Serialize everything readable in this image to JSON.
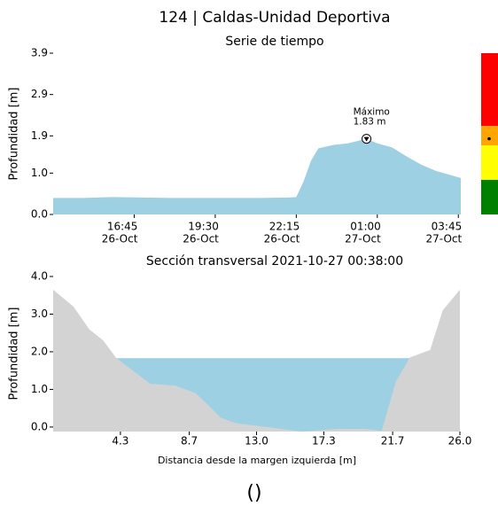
{
  "chart_data": [
    {
      "type": "area",
      "title": "124 | Caldas-Unidad Deportiva",
      "subtitle": "Serie de tiempo",
      "ylabel": "Profundidad [m]",
      "color": "#9dd0e2",
      "x": [
        "26-Oct 14:00",
        "26-Oct 15:00",
        "26-Oct 16:00",
        "26-Oct 17:00",
        "26-Oct 18:00",
        "26-Oct 19:00",
        "26-Oct 20:00",
        "26-Oct 21:00",
        "26-Oct 22:00",
        "26-Oct 22:15",
        "26-Oct 22:30",
        "26-Oct 22:45",
        "26-Oct 23:00",
        "26-Oct 23:30",
        "27-Oct 00:00",
        "27-Oct 00:38",
        "27-Oct 01:00",
        "27-Oct 01:30",
        "27-Oct 02:00",
        "27-Oct 02:30",
        "27-Oct 03:00",
        "27-Oct 03:30",
        "27-Oct 03:50"
      ],
      "values": [
        0.4,
        0.4,
        0.42,
        0.41,
        0.4,
        0.4,
        0.4,
        0.4,
        0.41,
        0.42,
        0.8,
        1.3,
        1.6,
        1.68,
        1.72,
        1.83,
        1.72,
        1.62,
        1.4,
        1.2,
        1.05,
        0.95,
        0.88
      ],
      "xlim": [
        "26-Oct 14:00",
        "27-Oct 03:50"
      ],
      "xticks": [
        {
          "value": "26-Oct 16:45",
          "label": [
            "16:45",
            "26-Oct"
          ]
        },
        {
          "value": "26-Oct 19:30",
          "label": [
            "19:30",
            "26-Oct"
          ]
        },
        {
          "value": "26-Oct 22:15",
          "label": [
            "22:15",
            "26-Oct"
          ]
        },
        {
          "value": "27-Oct 01:00",
          "label": [
            "01:00",
            "27-Oct"
          ]
        },
        {
          "value": "27-Oct 03:45",
          "label": [
            "03:45",
            "27-Oct"
          ]
        }
      ],
      "ylim": [
        0,
        3.9
      ],
      "yticks": [
        {
          "value": 0,
          "label": "0.0"
        },
        {
          "value": 1,
          "label": "1.0"
        },
        1.9,
        2.9,
        3.9
      ],
      "annotation": [
        "Máximo",
        "1.83 m"
      ],
      "levels": {
        "bounds": [
          0,
          0.84,
          1.67,
          2.14,
          3.9
        ],
        "colors": [
          "#008000",
          "#ffff00",
          "#ffa500",
          "#ff0000"
        ]
      }
    },
    {
      "type": "area",
      "title": "Sección transversal 2021-10-27 00:38:00",
      "ylabel": "Profundidad [m]",
      "xlabel": "Distancia desde la margen izquierda [m]",
      "color": "#d3d3d3",
      "water_color": "#9dd0e2",
      "water_level": 1.83,
      "x": [
        0,
        1.3,
        2.3,
        3.2,
        4.0,
        5.1,
        6.2,
        7.8,
        9.1,
        10.0,
        10.7,
        11.7,
        13.7,
        15.9,
        18.2,
        19.9,
        21.0,
        21.9,
        22.8,
        24.1,
        24.9,
        26.0
      ],
      "values": [
        3.65,
        3.2,
        2.6,
        2.3,
        1.85,
        1.5,
        1.15,
        1.1,
        0.9,
        0.55,
        0.25,
        0.1,
        0,
        -0.12,
        -0.05,
        -0.05,
        -0.1,
        1.2,
        1.85,
        2.05,
        3.1,
        3.65
      ],
      "xlim": [
        0,
        26
      ],
      "xticks": [
        4.3,
        8.7,
        {
          "value": 13,
          "label": "13.0"
        },
        17.3,
        21.7,
        {
          "value": 26,
          "label": "26.0"
        }
      ],
      "ylim": [
        -0.12,
        4.0
      ],
      "yticks": [
        {
          "value": 0,
          "label": "0.0"
        },
        {
          "value": 1,
          "label": "1.0"
        },
        {
          "value": 2,
          "label": "2.0"
        },
        {
          "value": 3,
          "label": "3.0"
        },
        {
          "value": 4,
          "label": "4.0"
        }
      ]
    }
  ],
  "footer": "()"
}
